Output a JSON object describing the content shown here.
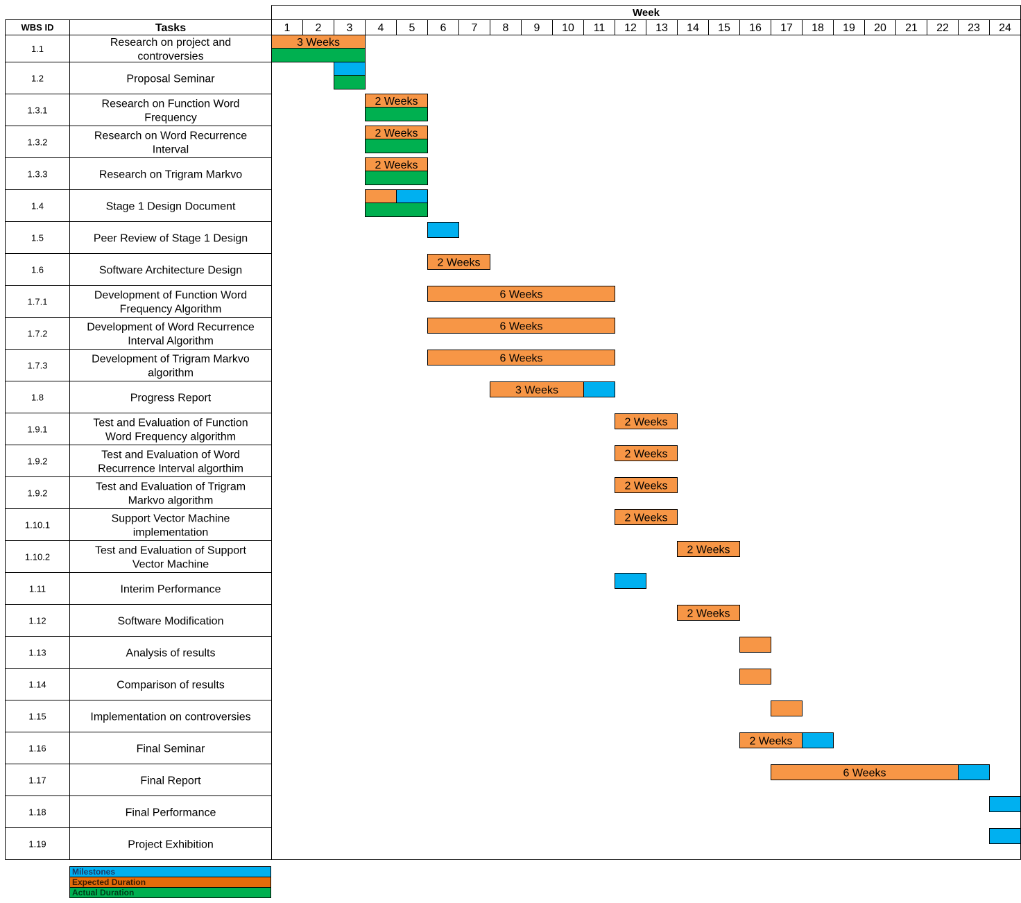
{
  "chart_data": {
    "type": "gantt",
    "header": {
      "period_label": "Week",
      "wbs_label": "WBS ID",
      "tasks_label": "Tasks"
    },
    "weeks": [
      "1",
      "2",
      "3",
      "4",
      "5",
      "6",
      "7",
      "8",
      "9",
      "10",
      "11",
      "12",
      "13",
      "14",
      "15",
      "16",
      "17",
      "18",
      "19",
      "20",
      "21",
      "22",
      "23",
      "24"
    ],
    "colors": {
      "milestone": "#00B0F0",
      "expected": "#F79646",
      "actual": "#00B050",
      "legend_expected": "#E46C0A"
    },
    "legend": [
      {
        "key": "milestone",
        "label": "Milestones"
      },
      {
        "key": "expected",
        "label": "Expected Duration"
      },
      {
        "key": "actual",
        "label": "Actual Duration"
      }
    ],
    "tasks": [
      {
        "id": "1.1",
        "name": "Research on project and controversies",
        "bars": [
          {
            "kind": "expected",
            "start": 1,
            "end": 3,
            "label": "3 Weeks"
          },
          {
            "kind": "actual",
            "start": 1,
            "end": 3
          }
        ]
      },
      {
        "id": "1.2",
        "name": "Proposal Seminar",
        "bars": [
          {
            "kind": "milestone",
            "start": 3,
            "end": 3
          },
          {
            "kind": "actual",
            "start": 3,
            "end": 3
          }
        ]
      },
      {
        "id": "1.3.1",
        "name": "Research on Function Word Frequency",
        "bars": [
          {
            "kind": "expected",
            "start": 4,
            "end": 5,
            "label": "2 Weeks"
          },
          {
            "kind": "actual",
            "start": 4,
            "end": 5
          }
        ]
      },
      {
        "id": "1.3.2",
        "name": "Research on Word Recurrence Interval",
        "bars": [
          {
            "kind": "expected",
            "start": 4,
            "end": 5,
            "label": "2 Weeks"
          },
          {
            "kind": "actual",
            "start": 4,
            "end": 5
          }
        ]
      },
      {
        "id": "1.3.3",
        "name": "Research on Trigram Markvo",
        "bars": [
          {
            "kind": "expected",
            "start": 4,
            "end": 5,
            "label": "2 Weeks"
          },
          {
            "kind": "actual",
            "start": 4,
            "end": 5
          }
        ]
      },
      {
        "id": "1.4",
        "name": "Stage 1 Design Document",
        "bars": [
          {
            "kind": "expected",
            "start": 4,
            "end": 4
          },
          {
            "kind": "milestone",
            "start": 5,
            "end": 5
          },
          {
            "kind": "actual",
            "start": 4,
            "end": 5
          }
        ]
      },
      {
        "id": "1.5",
        "name": "Peer Review of Stage 1 Design",
        "bars": [
          {
            "kind": "milestone",
            "start": 6,
            "end": 6
          }
        ]
      },
      {
        "id": "1.6",
        "name": "Software Architecture Design",
        "bars": [
          {
            "kind": "expected",
            "start": 6,
            "end": 7,
            "label": "2 Weeks"
          }
        ]
      },
      {
        "id": "1.7.1",
        "name": "Development of Function Word Frequency Algorithm",
        "bars": [
          {
            "kind": "expected",
            "start": 6,
            "end": 11,
            "label": "6 Weeks"
          }
        ]
      },
      {
        "id": "1.7.2",
        "name": "Development of Word Recurrence Interval Algorithm",
        "bars": [
          {
            "kind": "expected",
            "start": 6,
            "end": 11,
            "label": "6 Weeks"
          }
        ]
      },
      {
        "id": "1.7.3",
        "name": "Development of Trigram Markvo algorithm",
        "bars": [
          {
            "kind": "expected",
            "start": 6,
            "end": 11,
            "label": "6 Weeks"
          }
        ]
      },
      {
        "id": "1.8",
        "name": "Progress Report",
        "bars": [
          {
            "kind": "expected",
            "start": 8,
            "end": 10,
            "label": "3 Weeks"
          },
          {
            "kind": "milestone",
            "start": 11,
            "end": 11
          }
        ]
      },
      {
        "id": "1.9.1",
        "name": "Test and Evaluation of Function Word Frequency algorithm",
        "bars": [
          {
            "kind": "expected",
            "start": 12,
            "end": 13,
            "label": "2 Weeks"
          }
        ]
      },
      {
        "id": "1.9.2",
        "name": "Test and Evaluation of Word Recurrence Interval algorthim",
        "bars": [
          {
            "kind": "expected",
            "start": 12,
            "end": 13,
            "label": "2 Weeks"
          }
        ]
      },
      {
        "id": "1.9.2",
        "name": "Test and Evaluation of Trigram Markvo algorithm",
        "bars": [
          {
            "kind": "expected",
            "start": 12,
            "end": 13,
            "label": "2 Weeks"
          }
        ]
      },
      {
        "id": "1.10.1",
        "name": "Support Vector Machine implementation",
        "bars": [
          {
            "kind": "expected",
            "start": 12,
            "end": 13,
            "label": "2 Weeks"
          }
        ]
      },
      {
        "id": "1.10.2",
        "name": "Test and Evaluation of Support Vector Machine",
        "bars": [
          {
            "kind": "expected",
            "start": 14,
            "end": 15,
            "label": "2 Weeks"
          }
        ]
      },
      {
        "id": "1.11",
        "name": "Interim Performance",
        "bars": [
          {
            "kind": "milestone",
            "start": 12,
            "end": 12
          }
        ]
      },
      {
        "id": "1.12",
        "name": "Software Modification",
        "bars": [
          {
            "kind": "expected",
            "start": 14,
            "end": 15,
            "label": "2 Weeks"
          }
        ]
      },
      {
        "id": "1.13",
        "name": "Analysis of results",
        "bars": [
          {
            "kind": "expected",
            "start": 16,
            "end": 16
          }
        ]
      },
      {
        "id": "1.14",
        "name": "Comparison of results",
        "bars": [
          {
            "kind": "expected",
            "start": 16,
            "end": 16
          }
        ]
      },
      {
        "id": "1.15",
        "name": "Implementation on controversies",
        "bars": [
          {
            "kind": "expected",
            "start": 17,
            "end": 17
          }
        ]
      },
      {
        "id": "1.16",
        "name": "Final Seminar",
        "bars": [
          {
            "kind": "expected",
            "start": 16,
            "end": 17,
            "label": "2 Weeks"
          },
          {
            "kind": "milestone",
            "start": 18,
            "end": 18
          }
        ]
      },
      {
        "id": "1.17",
        "name": "Final Report",
        "bars": [
          {
            "kind": "expected",
            "start": 17,
            "end": 22,
            "label": "6 Weeks"
          },
          {
            "kind": "milestone",
            "start": 23,
            "end": 23
          }
        ]
      },
      {
        "id": "1.18",
        "name": "Final Performance",
        "bars": [
          {
            "kind": "milestone",
            "start": 24,
            "end": 24
          }
        ]
      },
      {
        "id": "1.19",
        "name": "Project Exhibition",
        "bars": [
          {
            "kind": "milestone",
            "start": 24,
            "end": 24
          }
        ]
      }
    ]
  }
}
